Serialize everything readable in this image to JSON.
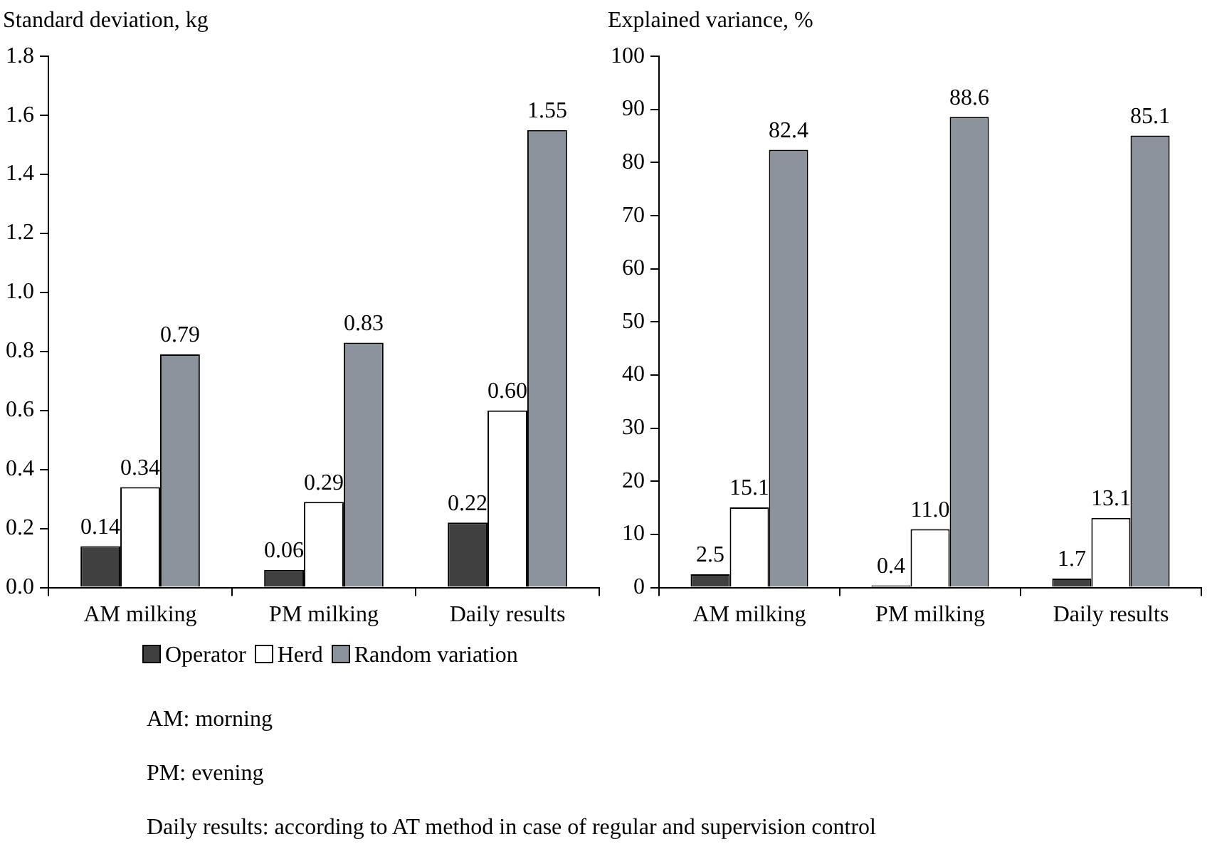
{
  "chart_data": [
    {
      "type": "bar",
      "ylabel": "Standard deviation, kg",
      "categories": [
        "AM milking",
        "PM milking",
        "Daily results"
      ],
      "series": [
        {
          "name": "Operator",
          "color": "#404040",
          "values": [
            0.14,
            0.06,
            0.22
          ],
          "value_labels": [
            "0.14",
            "0.06",
            "0.22"
          ]
        },
        {
          "name": "Herd",
          "color": "#ffffff",
          "values": [
            0.34,
            0.29,
            0.6
          ],
          "value_labels": [
            "0.34",
            "0.29",
            "0.60"
          ]
        },
        {
          "name": "Random variation",
          "color": "#8c939c",
          "values": [
            0.79,
            0.83,
            1.55
          ],
          "value_labels": [
            "0.79",
            "0.83",
            "1.55"
          ]
        }
      ],
      "ylim": [
        0,
        1.8
      ],
      "yticks": [
        {
          "value": 0,
          "label": "0.0"
        },
        {
          "value": 0.2,
          "label": "0.2"
        },
        {
          "value": 0.4,
          "label": "0.4"
        },
        {
          "value": 0.6,
          "label": "0.6"
        },
        {
          "value": 0.8,
          "label": "0.8"
        },
        {
          "value": 1,
          "label": "1.0"
        },
        {
          "value": 1.2,
          "label": "1.2"
        },
        {
          "value": 1.4,
          "label": "1.4"
        },
        {
          "value": 1.6,
          "label": "1.6"
        },
        {
          "value": 1.8,
          "label": "1.8"
        }
      ],
      "grid": false,
      "legend": "bottom",
      "annotations": [
        "AM: morning",
        "PM: evening",
        "Daily results: according to AT method in case of regular and supervision control"
      ]
    },
    {
      "type": "bar",
      "ylabel": "Explained variance, %",
      "categories": [
        "AM milking",
        "PM milking",
        "Daily results"
      ],
      "series": [
        {
          "color": "#404040",
          "values": [
            2.5,
            0.4,
            1.7
          ],
          "value_labels": [
            "2.5",
            "0.4",
            "1.7"
          ]
        },
        {
          "color": "#ffffff",
          "values": [
            15.1,
            11.0,
            13.1
          ],
          "value_labels": [
            "15.1",
            "11.0",
            "13.1"
          ]
        },
        {
          "color": "#8c939c",
          "values": [
            82.4,
            88.6,
            85.1
          ],
          "value_labels": [
            "82.4",
            "88.6",
            "85.1"
          ]
        }
      ],
      "ylim": [
        0,
        100
      ],
      "yticks": [
        0,
        10,
        20,
        30,
        40,
        50,
        60,
        70,
        80,
        90,
        100
      ],
      "grid": false
    }
  ]
}
